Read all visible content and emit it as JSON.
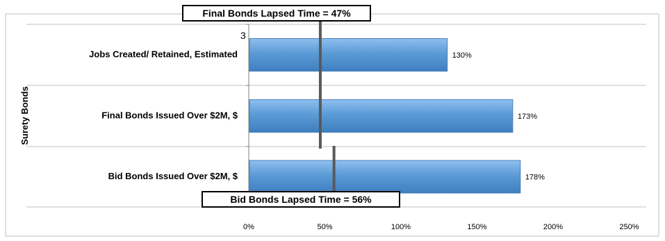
{
  "chart_data": {
    "type": "bar",
    "orientation": "horizontal",
    "ylabel": "Surety Bonds",
    "categories": [
      "Jobs Created/ Retained, Estimated",
      "Final Bonds Issued Over $2M, $",
      "Bid Bonds Issued Over $2M, $"
    ],
    "series": [
      {
        "values": [
          130,
          173,
          178
        ]
      }
    ],
    "data_labels": [
      "130%",
      "173%",
      "178%"
    ],
    "xlim": [
      0,
      250
    ],
    "xticks": [
      0,
      50,
      100,
      150,
      200,
      250
    ],
    "xtick_labels": [
      "0%",
      "50%",
      "100%",
      "150%",
      "200%",
      "250%"
    ],
    "grid": true,
    "bar_color": "#5b9bd5",
    "reference_lines": [
      {
        "value": 47,
        "label": "Final Bonds Lapsed Time = 47%",
        "label_position": "top",
        "color": "#595959"
      },
      {
        "value": 56,
        "label": "Bid Bonds Lapsed Time = 56%",
        "label_position": "bottom",
        "color": "#595959"
      }
    ],
    "stray_label": "3"
  }
}
